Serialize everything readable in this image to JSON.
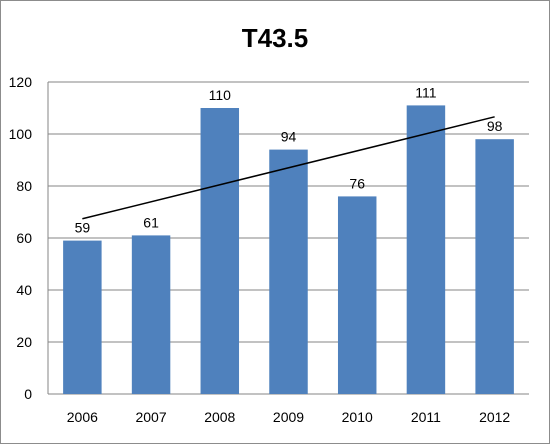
{
  "chart_data": {
    "type": "bar",
    "title": "T43.5",
    "xlabel": "",
    "ylabel": "",
    "categories": [
      "2006",
      "2007",
      "2008",
      "2009",
      "2010",
      "2011",
      "2012"
    ],
    "values": [
      59,
      61,
      110,
      94,
      76,
      111,
      98
    ],
    "data_labels": [
      "59",
      "61",
      "110",
      "94",
      "76",
      "111",
      "98"
    ],
    "ylim": [
      0,
      120
    ],
    "yticks": [
      0,
      20,
      40,
      60,
      80,
      100,
      120
    ],
    "ytick_labels": [
      "0",
      "20",
      "40",
      "60",
      "80",
      "100",
      "120"
    ],
    "grid": true,
    "legend": "none",
    "trendline": {
      "type": "linear",
      "color": "#000000"
    },
    "colors": {
      "bar": "#4f81bd",
      "grid": "#868686",
      "trendline": "#000000"
    }
  }
}
